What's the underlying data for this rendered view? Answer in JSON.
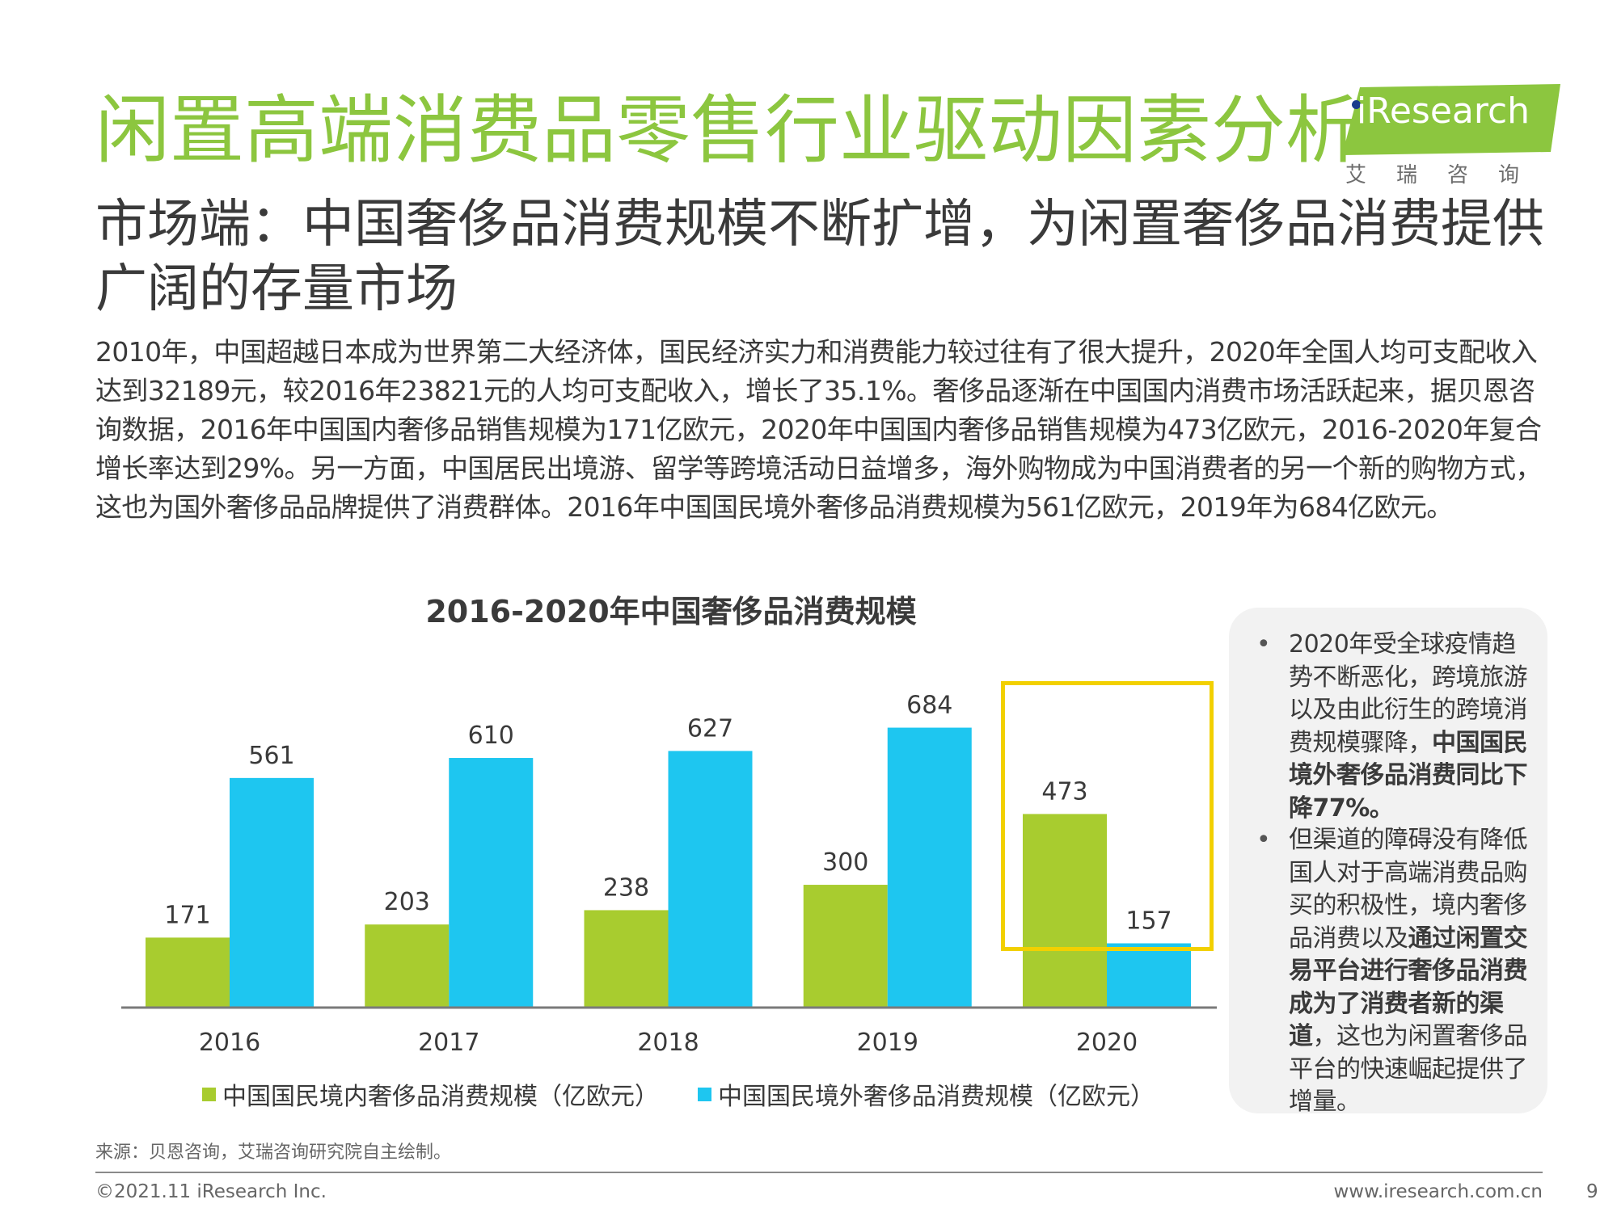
{
  "header": {
    "title": "闲置高端消费品零售行业驱动因素分析",
    "subtitle": "市场端：中国奢侈品消费规模不断扩增，为闲置奢侈品消费提供广阔的存量市场"
  },
  "logo": {
    "wordmark": "iResearch",
    "sub": "艾瑞咨询",
    "colors": {
      "banner": "#8cc63f",
      "dot": "#1a3b8c"
    }
  },
  "body_text": "2010年，中国超越日本成为世界第二大经济体，国民经济实力和消费能力较过往有了很大提升，2020年全国人均可支配收入达到32189元，较2016年23821元的人均可支配收入，增长了35.1%。奢侈品逐渐在中国国内消费市场活跃起来，据贝恩咨询数据，2016年中国国内奢侈品销售规模为171亿欧元，2020年中国国内奢侈品销售规模为473亿欧元，2016-2020年复合增长率达到29%。另一方面，中国居民出境游、留学等跨境活动日益增多，海外购物成为中国消费者的另一个新的购物方式，这也为国外奢侈品品牌提供了消费群体。2016年中国国民境外奢侈品消费规模为561亿欧元，2019年为684亿欧元。",
  "chart_data": {
    "type": "bar",
    "title": "2016-2020年中国奢侈品消费规模",
    "categories": [
      "2016",
      "2017",
      "2018",
      "2019",
      "2020"
    ],
    "series": [
      {
        "name": "中国国民境内奢侈品消费规模（亿欧元）",
        "values": [
          171,
          203,
          238,
          300,
          473
        ],
        "color": "#a8cc2f"
      },
      {
        "name": "中国国民境外奢侈品消费规模（亿欧元）",
        "values": [
          561,
          610,
          627,
          684,
          157
        ],
        "color": "#1ec6f0"
      }
    ],
    "xlabel": "",
    "ylabel": "",
    "ylim": [
      0,
      750
    ],
    "grid": false,
    "legend": "bottom",
    "highlight_category": "2020",
    "highlight_color": "#f2d000"
  },
  "sidebar": {
    "bullet_symbol": "•",
    "bullets": [
      {
        "normal": "2020年受全球疫情趋势不断恶化，跨境旅游以及由此衍生的跨境消费规模骤降，",
        "bold": "中国国民境外奢侈品消费同比下降77%。",
        "tail": ""
      },
      {
        "normal": "但渠道的障碍没有降低国人对于高端消费品购买的积极性，境内奢侈品消费以及",
        "bold": "通过闲置交易平台进行奢侈品消费成为了消费者新的渠道",
        "tail": "，这也为闲置奢侈品平台的快速崛起提供了增量。"
      }
    ]
  },
  "source": "来源：贝恩咨询，艾瑞咨询研究院自主绘制。",
  "footer": {
    "copyright": "©2021.11 iResearch Inc.",
    "website": "www.iresearch.com.cn",
    "page": "9"
  }
}
